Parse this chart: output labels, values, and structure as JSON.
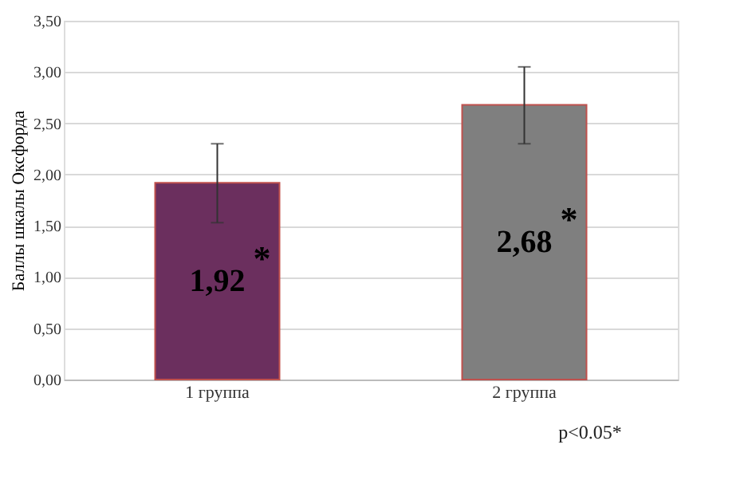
{
  "chart_data": {
    "type": "bar",
    "ylabel": "Баллы шкалы Оксфорда",
    "categories": [
      "1 группа",
      "2 группа"
    ],
    "values": [
      1.92,
      2.68
    ],
    "colors": [
      "#6b2f5e",
      "#7f7f7f"
    ],
    "errors": [
      [
        1.53,
        2.3
      ],
      [
        2.3,
        3.05
      ]
    ],
    "value_labels": [
      "1,92",
      "2,68"
    ],
    "annotations": [
      "*",
      "*",
      "p<0.05*"
    ],
    "ylim": [
      0,
      3.5
    ],
    "yticks": [
      {
        "value": 0,
        "label": "0,00"
      },
      {
        "value": 0.5,
        "label": "0,50"
      },
      {
        "value": 1,
        "label": "1,00"
      },
      {
        "value": 1.5,
        "label": "1,50"
      },
      {
        "value": 2,
        "label": "2,00"
      },
      {
        "value": 2.5,
        "label": "2,50"
      },
      {
        "value": 3,
        "label": "3,00"
      },
      {
        "value": 3.5,
        "label": "3,50"
      }
    ],
    "grid": "y"
  }
}
